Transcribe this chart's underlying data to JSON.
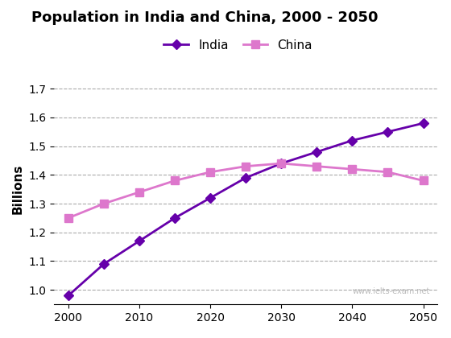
{
  "title": "Population in India and China, 2000 - 2050",
  "ylabel": "Billions",
  "india_x": [
    2000,
    2005,
    2010,
    2015,
    2020,
    2025,
    2030,
    2035,
    2040,
    2045,
    2050
  ],
  "india_y": [
    0.98,
    1.09,
    1.17,
    1.25,
    1.32,
    1.39,
    1.44,
    1.48,
    1.52,
    1.55,
    1.58
  ],
  "china_x": [
    2000,
    2005,
    2010,
    2015,
    2020,
    2025,
    2030,
    2035,
    2040,
    2045,
    2050
  ],
  "china_y": [
    1.25,
    1.3,
    1.34,
    1.38,
    1.41,
    1.43,
    1.44,
    1.43,
    1.42,
    1.41,
    1.38
  ],
  "india_color": "#6600aa",
  "china_color": "#dd77cc",
  "india_marker": "D",
  "china_marker": "s",
  "ylim": [
    0.95,
    1.75
  ],
  "yticks": [
    1.0,
    1.1,
    1.2,
    1.3,
    1.4,
    1.5,
    1.6,
    1.7
  ],
  "xticks": [
    2000,
    2010,
    2020,
    2030,
    2040,
    2050
  ],
  "xlim": [
    1998,
    2052
  ],
  "watermark": "www.ielts-exam.net",
  "background_color": "#ffffff"
}
